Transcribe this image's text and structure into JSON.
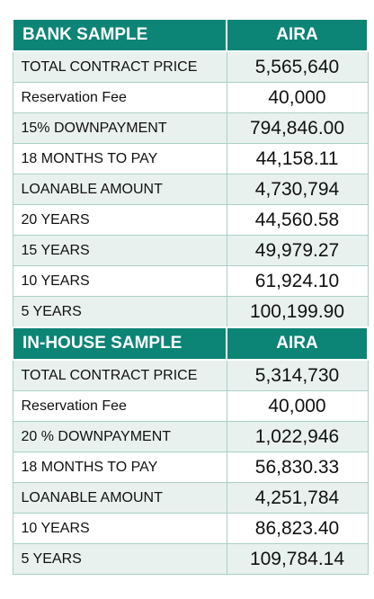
{
  "colors": {
    "header_bg": "#0c8476",
    "header_text": "#ffffff",
    "row_alt_bg": "#e8f1ee",
    "row_bg": "#ffffff",
    "grid_line": "#a9cfc7"
  },
  "bank": {
    "header": {
      "label": "BANK SAMPLE",
      "value": "AIRA"
    },
    "rows": [
      {
        "label": "TOTAL CONTRACT PRICE",
        "value": "5,565,640"
      },
      {
        "label": "Reservation Fee",
        "value": "40,000"
      },
      {
        "label": "15% DOWNPAYMENT",
        "value": "794,846.00"
      },
      {
        "label": "18 MONTHS TO PAY",
        "value": "44,158.11"
      },
      {
        "label": "LOANABLE AMOUNT",
        "value": "4,730,794"
      },
      {
        "label": "20 YEARS",
        "value": "44,560.58"
      },
      {
        "label": "15 YEARS",
        "value": "49,979.27"
      },
      {
        "label": "10 YEARS",
        "value": "61,924.10"
      },
      {
        "label": "5 YEARS",
        "value": "100,199.90"
      }
    ]
  },
  "inhouse": {
    "header": {
      "label": "IN-HOUSE SAMPLE",
      "value": "AIRA"
    },
    "rows": [
      {
        "label": "TOTAL CONTRACT PRICE",
        "value": "5,314,730"
      },
      {
        "label": "Reservation Fee",
        "value": "40,000"
      },
      {
        "label": "20 % DOWNPAYMENT",
        "value": "1,022,946"
      },
      {
        "label": "18 MONTHS TO PAY",
        "value": "56,830.33"
      },
      {
        "label": "LOANABLE AMOUNT",
        "value": "4,251,784"
      },
      {
        "label": "10 YEARS",
        "value": "86,823.40"
      },
      {
        "label": "5 YEARS",
        "value": "109,784.14"
      }
    ]
  }
}
